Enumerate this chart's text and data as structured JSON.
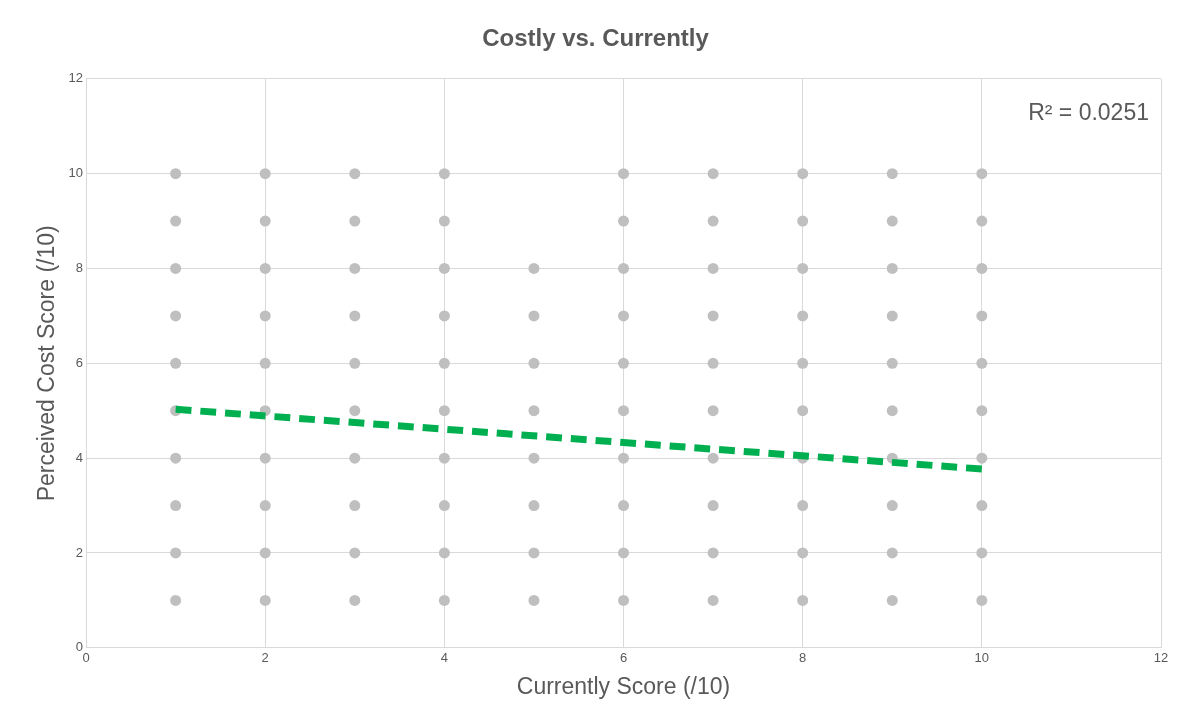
{
  "chart_data": {
    "type": "scatter",
    "title": "Costly vs. Currently",
    "xlabel": "Currently Score (/10)",
    "ylabel": "Perceived Cost Score (/10)",
    "xlim": [
      0,
      12
    ],
    "ylim": [
      0,
      12
    ],
    "xticks": [
      0,
      2,
      4,
      6,
      8,
      10,
      12
    ],
    "yticks": [
      0,
      2,
      4,
      6,
      8,
      10,
      12
    ],
    "grid": true,
    "legend": false,
    "annotations": [
      "R² = 0.0251"
    ],
    "series": [
      {
        "color": "#bfbfbf",
        "marker": "circle",
        "x": [
          1,
          1,
          1,
          1,
          1,
          1,
          1,
          1,
          1,
          1,
          2,
          2,
          2,
          2,
          2,
          2,
          2,
          2,
          2,
          2,
          3,
          3,
          3,
          3,
          3,
          3,
          3,
          3,
          3,
          3,
          4,
          4,
          4,
          4,
          4,
          4,
          4,
          4,
          4,
          4,
          5,
          5,
          5,
          5,
          5,
          5,
          5,
          5,
          6,
          6,
          6,
          6,
          6,
          6,
          6,
          6,
          6,
          6,
          7,
          7,
          7,
          7,
          7,
          7,
          7,
          7,
          7,
          7,
          8,
          8,
          8,
          8,
          8,
          8,
          8,
          8,
          8,
          8,
          9,
          9,
          9,
          9,
          9,
          9,
          9,
          9,
          9,
          9,
          10,
          10,
          10,
          10,
          10,
          10,
          10,
          10,
          10,
          10
        ],
        "values": [
          1,
          2,
          3,
          4,
          5,
          6,
          7,
          8,
          9,
          10,
          1,
          2,
          3,
          4,
          5,
          6,
          7,
          8,
          9,
          10,
          1,
          2,
          3,
          4,
          5,
          6,
          7,
          8,
          9,
          10,
          1,
          2,
          3,
          4,
          5,
          6,
          7,
          8,
          9,
          10,
          1,
          2,
          3,
          4,
          5,
          6,
          7,
          8,
          1,
          2,
          3,
          4,
          5,
          6,
          7,
          8,
          9,
          10,
          1,
          2,
          3,
          4,
          5,
          6,
          7,
          8,
          9,
          10,
          1,
          2,
          3,
          4,
          5,
          6,
          7,
          8,
          9,
          10,
          1,
          2,
          3,
          4,
          5,
          6,
          7,
          8,
          9,
          10,
          1,
          2,
          3,
          4,
          5,
          6,
          7,
          8,
          9,
          10
        ]
      },
      {
        "type": "line",
        "color": "#00b050",
        "marker": "none",
        "line_style": "dashed",
        "x": [
          1,
          10
        ],
        "values": [
          5.03,
          3.77
        ]
      }
    ]
  }
}
